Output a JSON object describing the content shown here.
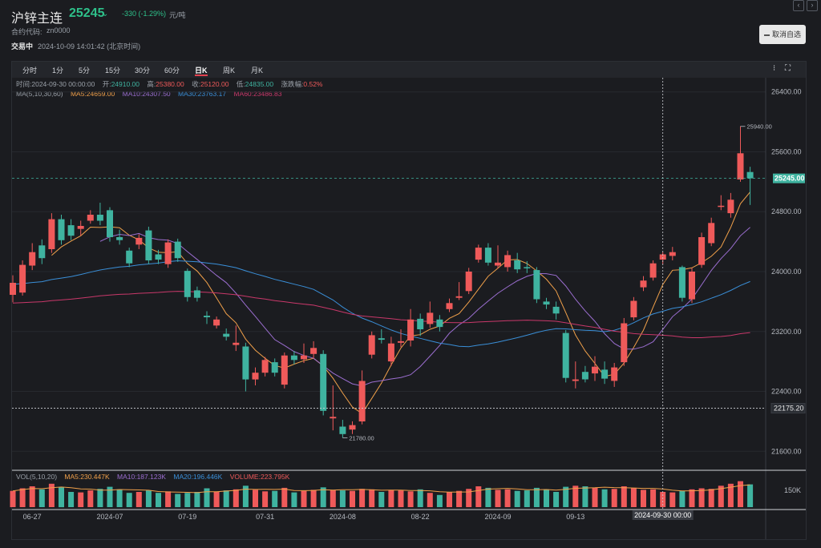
{
  "header": {
    "title": "沪锌主连",
    "price": "25245",
    "caret": "⌄",
    "change": "-330 (-1.29%)",
    "unit": "元/吨",
    "code_label": "合约代码:",
    "code": "zn0000",
    "status": "交易中",
    "time": "2024-10-09 14:01:42 (北京时间)",
    "favorite_label": "取消自选",
    "nav_prev": "‹",
    "nav_next": "›"
  },
  "tabs": [
    {
      "label": "分时"
    },
    {
      "label": "1分"
    },
    {
      "label": "5分"
    },
    {
      "label": "15分"
    },
    {
      "label": "30分"
    },
    {
      "label": "60分"
    },
    {
      "label": "日K"
    },
    {
      "label": "周K"
    },
    {
      "label": "月K"
    }
  ],
  "active_tab": "日K",
  "toolbar": {
    "menu_icon": "⁝",
    "fullscreen_icon": "⛶"
  },
  "info": {
    "time_label": "时间:",
    "time": "2024-09-30 00:00:00",
    "open_label": "开:",
    "open": "24910.00",
    "high_label": "高:",
    "high": "25380.00",
    "close_label": "收:",
    "close": "25120.00",
    "low_label": "低:",
    "low": "24835.00",
    "pct_label": "涨跌幅:",
    "pct": "0.52%",
    "ma_label": "MA(5,10,30,60)",
    "ma5": "MA5:24659.00",
    "ma10": "MA10:24307.50",
    "ma30": "MA30:23763.17",
    "ma60": "MA60:23486.83"
  },
  "volume_info": {
    "label": "VOL(5,10,20)",
    "ma5": "MA5:230.447K",
    "ma10": "MA10:187.123K",
    "ma20": "MA20:196.446K",
    "volume": "VOLUME:223.795K"
  },
  "colors": {
    "up": "#ef5a5a",
    "down": "#3fb3a0",
    "ma5": "#f0a04a",
    "ma10": "#9b6ed0",
    "ma30": "#3a8fd8",
    "ma60": "#c9386a",
    "last_price_bg": "#3fb3a0"
  },
  "chart_data": {
    "type": "candlestick",
    "y_ticks": [
      "26400.00",
      "25600.00",
      "24800.00",
      "24000.00",
      "23200.00",
      "22400.00",
      "21600.00"
    ],
    "ylim": [
      21400,
      26600
    ],
    "x_ticks": [
      {
        "label": "06-27",
        "i": 2
      },
      {
        "label": "2024-07",
        "i": 10
      },
      {
        "label": "07-19",
        "i": 18
      },
      {
        "label": "07-31",
        "i": 26
      },
      {
        "label": "2024-08",
        "i": 34
      },
      {
        "label": "08-22",
        "i": 42
      },
      {
        "label": "2024-09",
        "i": 50
      },
      {
        "label": "09-13",
        "i": 58
      }
    ],
    "last_price": "25245.00",
    "crosshair_price": "22175.20",
    "crosshair_time": "2024-09-30 00:00",
    "crosshair_index": 67,
    "high_mark": "25940.00",
    "low_mark": "21780.00",
    "volume_tick": "150K",
    "volume_max": 260,
    "candles": [
      {
        "o": 23690,
        "c": 23850,
        "h": 23950,
        "l": 23590,
        "v": 160
      },
      {
        "o": 23720,
        "c": 24090,
        "h": 24150,
        "l": 23680,
        "v": 185
      },
      {
        "o": 24080,
        "c": 24260,
        "h": 24380,
        "l": 24020,
        "v": 205
      },
      {
        "o": 24350,
        "c": 24180,
        "h": 24430,
        "l": 24100,
        "v": 175
      },
      {
        "o": 24300,
        "c": 24700,
        "h": 24780,
        "l": 24250,
        "v": 230
      },
      {
        "o": 24700,
        "c": 24420,
        "h": 24760,
        "l": 24360,
        "v": 195
      },
      {
        "o": 24620,
        "c": 24480,
        "h": 24700,
        "l": 24420,
        "v": 150
      },
      {
        "o": 24570,
        "c": 24610,
        "h": 24680,
        "l": 24480,
        "v": 145
      },
      {
        "o": 24680,
        "c": 24760,
        "h": 24820,
        "l": 24640,
        "v": 165
      },
      {
        "o": 24760,
        "c": 24680,
        "h": 24920,
        "l": 24620,
        "v": 180
      },
      {
        "o": 24820,
        "c": 24460,
        "h": 24860,
        "l": 24400,
        "v": 200
      },
      {
        "o": 24460,
        "c": 24420,
        "h": 24560,
        "l": 24360,
        "v": 175
      },
      {
        "o": 24280,
        "c": 24110,
        "h": 24320,
        "l": 24060,
        "v": 140
      },
      {
        "o": 24360,
        "c": 24450,
        "h": 24500,
        "l": 24300,
        "v": 150
      },
      {
        "o": 24550,
        "c": 24150,
        "h": 24600,
        "l": 24100,
        "v": 165
      },
      {
        "o": 24230,
        "c": 24160,
        "h": 24290,
        "l": 24100,
        "v": 140
      },
      {
        "o": 24100,
        "c": 24390,
        "h": 24430,
        "l": 24050,
        "v": 155
      },
      {
        "o": 24400,
        "c": 24180,
        "h": 24440,
        "l": 24130,
        "v": 130
      },
      {
        "o": 24010,
        "c": 23660,
        "h": 24040,
        "l": 23600,
        "v": 140
      },
      {
        "o": 23750,
        "c": 23650,
        "h": 23800,
        "l": 23600,
        "v": 150
      },
      {
        "o": 23410,
        "c": 23390,
        "h": 23470,
        "l": 23300,
        "v": 185
      },
      {
        "o": 23280,
        "c": 23360,
        "h": 23400,
        "l": 23240,
        "v": 150
      },
      {
        "o": 23170,
        "c": 23130,
        "h": 23240,
        "l": 23080,
        "v": 165
      },
      {
        "o": 23020,
        "c": 23050,
        "h": 23280,
        "l": 22940,
        "v": 175
      },
      {
        "o": 23000,
        "c": 22560,
        "h": 23050,
        "l": 22400,
        "v": 210
      },
      {
        "o": 22560,
        "c": 22650,
        "h": 22720,
        "l": 22480,
        "v": 170
      },
      {
        "o": 22650,
        "c": 22820,
        "h": 22860,
        "l": 22600,
        "v": 155
      },
      {
        "o": 22790,
        "c": 22650,
        "h": 22840,
        "l": 22600,
        "v": 160
      },
      {
        "o": 22490,
        "c": 22880,
        "h": 22920,
        "l": 22440,
        "v": 190
      },
      {
        "o": 22880,
        "c": 22820,
        "h": 22940,
        "l": 22760,
        "v": 145
      },
      {
        "o": 22830,
        "c": 22880,
        "h": 23040,
        "l": 22780,
        "v": 160
      },
      {
        "o": 22900,
        "c": 22980,
        "h": 23070,
        "l": 22840,
        "v": 170
      },
      {
        "o": 22900,
        "c": 22140,
        "h": 22950,
        "l": 22080,
        "v": 195
      },
      {
        "o": 22040,
        "c": 22060,
        "h": 22480,
        "l": 21880,
        "v": 170
      },
      {
        "o": 21930,
        "c": 21830,
        "h": 22020,
        "l": 21780,
        "v": 165
      },
      {
        "o": 21890,
        "c": 21950,
        "h": 22000,
        "l": 21830,
        "v": 160
      },
      {
        "o": 22000,
        "c": 22540,
        "h": 22680,
        "l": 21960,
        "v": 180
      },
      {
        "o": 22890,
        "c": 23150,
        "h": 23200,
        "l": 22840,
        "v": 175
      },
      {
        "o": 23110,
        "c": 23090,
        "h": 23230,
        "l": 23040,
        "v": 150
      },
      {
        "o": 22800,
        "c": 23040,
        "h": 23130,
        "l": 22740,
        "v": 170
      },
      {
        "o": 23050,
        "c": 23070,
        "h": 23230,
        "l": 22990,
        "v": 165
      },
      {
        "o": 23080,
        "c": 23360,
        "h": 23500,
        "l": 23000,
        "v": 155
      },
      {
        "o": 23370,
        "c": 23230,
        "h": 23440,
        "l": 23140,
        "v": 175
      },
      {
        "o": 23300,
        "c": 23450,
        "h": 23600,
        "l": 23250,
        "v": 140
      },
      {
        "o": 23360,
        "c": 23260,
        "h": 23420,
        "l": 23200,
        "v": 120
      },
      {
        "o": 23500,
        "c": 23580,
        "h": 23640,
        "l": 23460,
        "v": 150
      },
      {
        "o": 23650,
        "c": 23670,
        "h": 23860,
        "l": 23620,
        "v": 160
      },
      {
        "o": 23740,
        "c": 24000,
        "h": 24050,
        "l": 23700,
        "v": 180
      },
      {
        "o": 24160,
        "c": 24320,
        "h": 24360,
        "l": 24120,
        "v": 205
      },
      {
        "o": 24320,
        "c": 24120,
        "h": 24380,
        "l": 24080,
        "v": 190
      },
      {
        "o": 24080,
        "c": 24120,
        "h": 24350,
        "l": 24040,
        "v": 170
      },
      {
        "o": 24060,
        "c": 24220,
        "h": 24280,
        "l": 24000,
        "v": 175
      },
      {
        "o": 24150,
        "c": 24030,
        "h": 24250,
        "l": 23980,
        "v": 160
      },
      {
        "o": 24060,
        "c": 24050,
        "h": 24140,
        "l": 23980,
        "v": 165
      },
      {
        "o": 24020,
        "c": 23630,
        "h": 24060,
        "l": 23580,
        "v": 190
      },
      {
        "o": 23600,
        "c": 23560,
        "h": 23650,
        "l": 23500,
        "v": 175
      },
      {
        "o": 23530,
        "c": 23440,
        "h": 23600,
        "l": 23360,
        "v": 150
      },
      {
        "o": 23180,
        "c": 22580,
        "h": 23220,
        "l": 22520,
        "v": 200
      },
      {
        "o": 22540,
        "c": 22560,
        "h": 22800,
        "l": 22440,
        "v": 210
      },
      {
        "o": 22660,
        "c": 22560,
        "h": 22740,
        "l": 22520,
        "v": 205
      },
      {
        "o": 22640,
        "c": 22730,
        "h": 22870,
        "l": 22540,
        "v": 190
      },
      {
        "o": 22690,
        "c": 22570,
        "h": 22800,
        "l": 22500,
        "v": 175
      },
      {
        "o": 22540,
        "c": 22720,
        "h": 22780,
        "l": 22460,
        "v": 180
      },
      {
        "o": 22790,
        "c": 23310,
        "h": 23380,
        "l": 22740,
        "v": 205
      },
      {
        "o": 23390,
        "c": 23610,
        "h": 23660,
        "l": 23350,
        "v": 190
      },
      {
        "o": 23790,
        "c": 23880,
        "h": 23940,
        "l": 23740,
        "v": 170
      },
      {
        "o": 23920,
        "c": 24110,
        "h": 24150,
        "l": 23880,
        "v": 175
      },
      {
        "o": 24160,
        "c": 24230,
        "h": 24260,
        "l": 24100,
        "v": 150
      },
      {
        "o": 24210,
        "c": 24260,
        "h": 24330,
        "l": 24150,
        "v": 145
      },
      {
        "o": 24060,
        "c": 23650,
        "h": 24080,
        "l": 23600,
        "v": 160
      },
      {
        "o": 23630,
        "c": 24000,
        "h": 24050,
        "l": 23580,
        "v": 175
      },
      {
        "o": 24090,
        "c": 24460,
        "h": 24520,
        "l": 24050,
        "v": 185
      },
      {
        "o": 24380,
        "c": 24650,
        "h": 24720,
        "l": 24340,
        "v": 180
      },
      {
        "o": 24880,
        "c": 24880,
        "h": 25020,
        "l": 24820,
        "v": 210
      },
      {
        "o": 24780,
        "c": 24960,
        "h": 25050,
        "l": 24720,
        "v": 230
      },
      {
        "o": 25230,
        "c": 25580,
        "h": 25940,
        "l": 25200,
        "v": 255
      },
      {
        "o": 25330,
        "c": 25245,
        "h": 25400,
        "l": 24890,
        "v": 224
      }
    ]
  }
}
